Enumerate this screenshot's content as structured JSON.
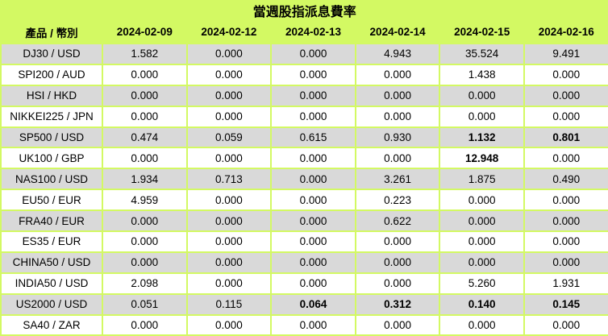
{
  "title": "當週股指派息費率",
  "table": {
    "corner_header": "產品 / 幣別",
    "date_headers": [
      "2024-02-09",
      "2024-02-12",
      "2024-02-13",
      "2024-02-14",
      "2024-02-15",
      "2024-02-16"
    ],
    "rows": [
      {
        "product": "DJ30 / USD",
        "values": [
          "1.582",
          "0.000",
          "0.000",
          "4.943",
          "35.524",
          "9.491"
        ],
        "bold": [
          false,
          false,
          false,
          false,
          false,
          false
        ]
      },
      {
        "product": "SPI200 / AUD",
        "values": [
          "0.000",
          "0.000",
          "0.000",
          "0.000",
          "1.438",
          "0.000"
        ],
        "bold": [
          false,
          false,
          false,
          false,
          false,
          false
        ]
      },
      {
        "product": "HSI / HKD",
        "values": [
          "0.000",
          "0.000",
          "0.000",
          "0.000",
          "0.000",
          "0.000"
        ],
        "bold": [
          false,
          false,
          false,
          false,
          false,
          false
        ]
      },
      {
        "product": "NIKKEI225 / JPN",
        "values": [
          "0.000",
          "0.000",
          "0.000",
          "0.000",
          "0.000",
          "0.000"
        ],
        "bold": [
          false,
          false,
          false,
          false,
          false,
          false
        ]
      },
      {
        "product": "SP500 / USD",
        "values": [
          "0.474",
          "0.059",
          "0.615",
          "0.930",
          "1.132",
          "0.801"
        ],
        "bold": [
          false,
          false,
          false,
          false,
          true,
          true
        ]
      },
      {
        "product": "UK100 / GBP",
        "values": [
          "0.000",
          "0.000",
          "0.000",
          "0.000",
          "12.948",
          "0.000"
        ],
        "bold": [
          false,
          false,
          false,
          false,
          true,
          false
        ]
      },
      {
        "product": "NAS100 / USD",
        "values": [
          "1.934",
          "0.713",
          "0.000",
          "3.261",
          "1.875",
          "0.490"
        ],
        "bold": [
          false,
          false,
          false,
          false,
          false,
          false
        ]
      },
      {
        "product": "EU50 / EUR",
        "values": [
          "4.959",
          "0.000",
          "0.000",
          "0.223",
          "0.000",
          "0.000"
        ],
        "bold": [
          false,
          false,
          false,
          false,
          false,
          false
        ]
      },
      {
        "product": "FRA40 / EUR",
        "values": [
          "0.000",
          "0.000",
          "0.000",
          "0.622",
          "0.000",
          "0.000"
        ],
        "bold": [
          false,
          false,
          false,
          false,
          false,
          false
        ]
      },
      {
        "product": "ES35 / EUR",
        "values": [
          "0.000",
          "0.000",
          "0.000",
          "0.000",
          "0.000",
          "0.000"
        ],
        "bold": [
          false,
          false,
          false,
          false,
          false,
          false
        ]
      },
      {
        "product": "CHINA50 / USD",
        "values": [
          "0.000",
          "0.000",
          "0.000",
          "0.000",
          "0.000",
          "0.000"
        ],
        "bold": [
          false,
          false,
          false,
          false,
          false,
          false
        ]
      },
      {
        "product": "INDIA50 / USD",
        "values": [
          "2.098",
          "0.000",
          "0.000",
          "0.000",
          "5.260",
          "1.931"
        ],
        "bold": [
          false,
          false,
          false,
          false,
          false,
          false
        ]
      },
      {
        "product": "US2000 / USD",
        "values": [
          "0.051",
          "0.115",
          "0.064",
          "0.312",
          "0.140",
          "0.145"
        ],
        "bold": [
          false,
          false,
          true,
          true,
          true,
          true
        ]
      },
      {
        "product": "SA40 / ZAR",
        "values": [
          "0.000",
          "0.000",
          "0.000",
          "0.000",
          "0.000",
          "0.000"
        ],
        "bold": [
          false,
          false,
          false,
          false,
          false,
          false
        ]
      }
    ]
  },
  "colors": {
    "accent_green": "#d3f963",
    "row_gray": "#d9d9d9",
    "row_white": "#ffffff",
    "text": "#000000"
  }
}
